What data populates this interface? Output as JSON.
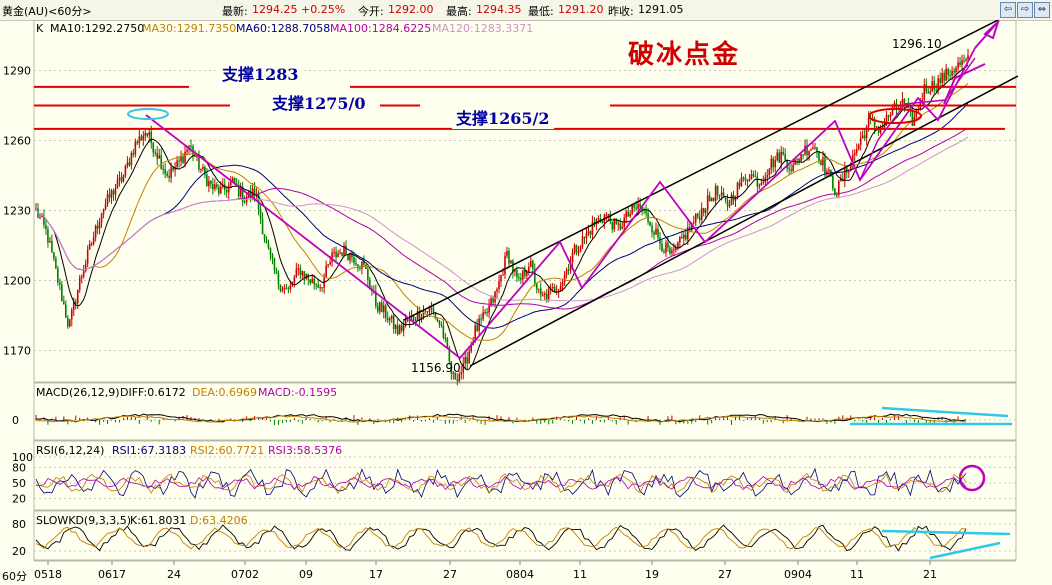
{
  "header": {
    "symbol": "黄金(AU)<60分>",
    "latest_label": "最新:",
    "latest_value": "1294.25 +0.25%",
    "open_label": "今开:",
    "open_value": "1292.00",
    "high_label": "最高:",
    "high_value": "1294.35",
    "low_label": "最低:",
    "low_value": "1291.20",
    "prev_label": "昨收:",
    "prev_value": "1291.05"
  },
  "nav": {
    "left": "⇦",
    "right": "⇨",
    "max": "⇔"
  },
  "ma_header": {
    "k": "K",
    "ma10": "MA10:1292.2750",
    "ma30": "MA30:1291.7350",
    "ma60": "MA60:1288.7058",
    "ma100": "MA100:1284.6225",
    "ma120": "MA120:1283.3371"
  },
  "annotations": {
    "title": "破冰点金",
    "support1": "支撑1283",
    "support2": "支撑1275/0",
    "support3": "支撑1265/2",
    "high_price": "1296.10",
    "low_price": "1156.90"
  },
  "macd_header": {
    "name": "MACD(26,12,9)",
    "diff": "DIFF:0.6172",
    "dea": "DEA:0.6969",
    "macd": "MACD:-0.1595"
  },
  "rsi_header": {
    "name": "RSI(6,12,24)",
    "rsi1": "RSI1:67.3183",
    "rsi2": "RSI2:60.7721",
    "rsi3": "RSI3:58.5376"
  },
  "kd_header": {
    "name": "SLOWKD(9,3,3,5)",
    "k": "K:61.8031",
    "d": "D:63.4206"
  },
  "timeframe": "60分",
  "colors": {
    "background": "#fffff0",
    "up": "#d00000",
    "down": "#008000",
    "ma10": "#000000",
    "ma30": "#c08000",
    "ma60": "#000080",
    "ma100": "#b000b0",
    "ma120": "#d090d0",
    "support_line": "#e00000",
    "channel": "#000000",
    "trend": "#c000c0",
    "cyan": "#30c8e8",
    "annotation_text": "#0000a0"
  },
  "chart_data": [
    {
      "type": "candlestick",
      "title": "",
      "ylim": [
        1150,
        1300
      ],
      "y_ticks": [
        1170,
        1200,
        1230,
        1260,
        1290
      ],
      "x_ticks": [
        "0518",
        "0617",
        "24",
        "0702",
        "09",
        "17",
        "27",
        "0804",
        "11",
        "19",
        "27",
        "0904",
        "11",
        "21"
      ],
      "support_levels": [
        1283,
        1275,
        1265
      ],
      "marked_high": 1296.1,
      "marked_low": 1156.9,
      "anchor_closes": [
        1230,
        1220,
        1200,
        1180,
        1200,
        1215,
        1230,
        1238,
        1245,
        1258,
        1264,
        1255,
        1245,
        1250,
        1258,
        1248,
        1240,
        1238,
        1242,
        1235,
        1238,
        1215,
        1200,
        1195,
        1205,
        1200,
        1198,
        1210,
        1213,
        1210,
        1205,
        1190,
        1185,
        1178,
        1183,
        1186,
        1188,
        1180,
        1158,
        1162,
        1178,
        1185,
        1195,
        1212,
        1198,
        1208,
        1192,
        1195,
        1200,
        1212,
        1218,
        1225,
        1228,
        1222,
        1228,
        1232,
        1225,
        1216,
        1210,
        1218,
        1225,
        1232,
        1238,
        1232,
        1240,
        1246,
        1242,
        1250,
        1254,
        1248,
        1256,
        1258,
        1248,
        1238,
        1248,
        1258,
        1268,
        1265,
        1272,
        1276,
        1268,
        1282,
        1284,
        1288,
        1292,
        1294
      ]
    },
    {
      "type": "line",
      "title": "MACD(26,12,9)",
      "y_ticks": [
        0
      ],
      "values": {
        "DIFF": 0.6172,
        "DEA": 0.6969,
        "MACD": -0.1595
      }
    },
    {
      "type": "line",
      "title": "RSI(6,12,24)",
      "y_ticks": [
        20,
        50,
        80,
        100
      ],
      "values": {
        "RSI1": 67.3183,
        "RSI2": 60.7721,
        "RSI3": 58.5376
      }
    },
    {
      "type": "line",
      "title": "SLOWKD(9,3,3,5)",
      "y_ticks": [
        20,
        80
      ],
      "values": {
        "K": 61.8031,
        "D": 63.4206
      }
    }
  ]
}
